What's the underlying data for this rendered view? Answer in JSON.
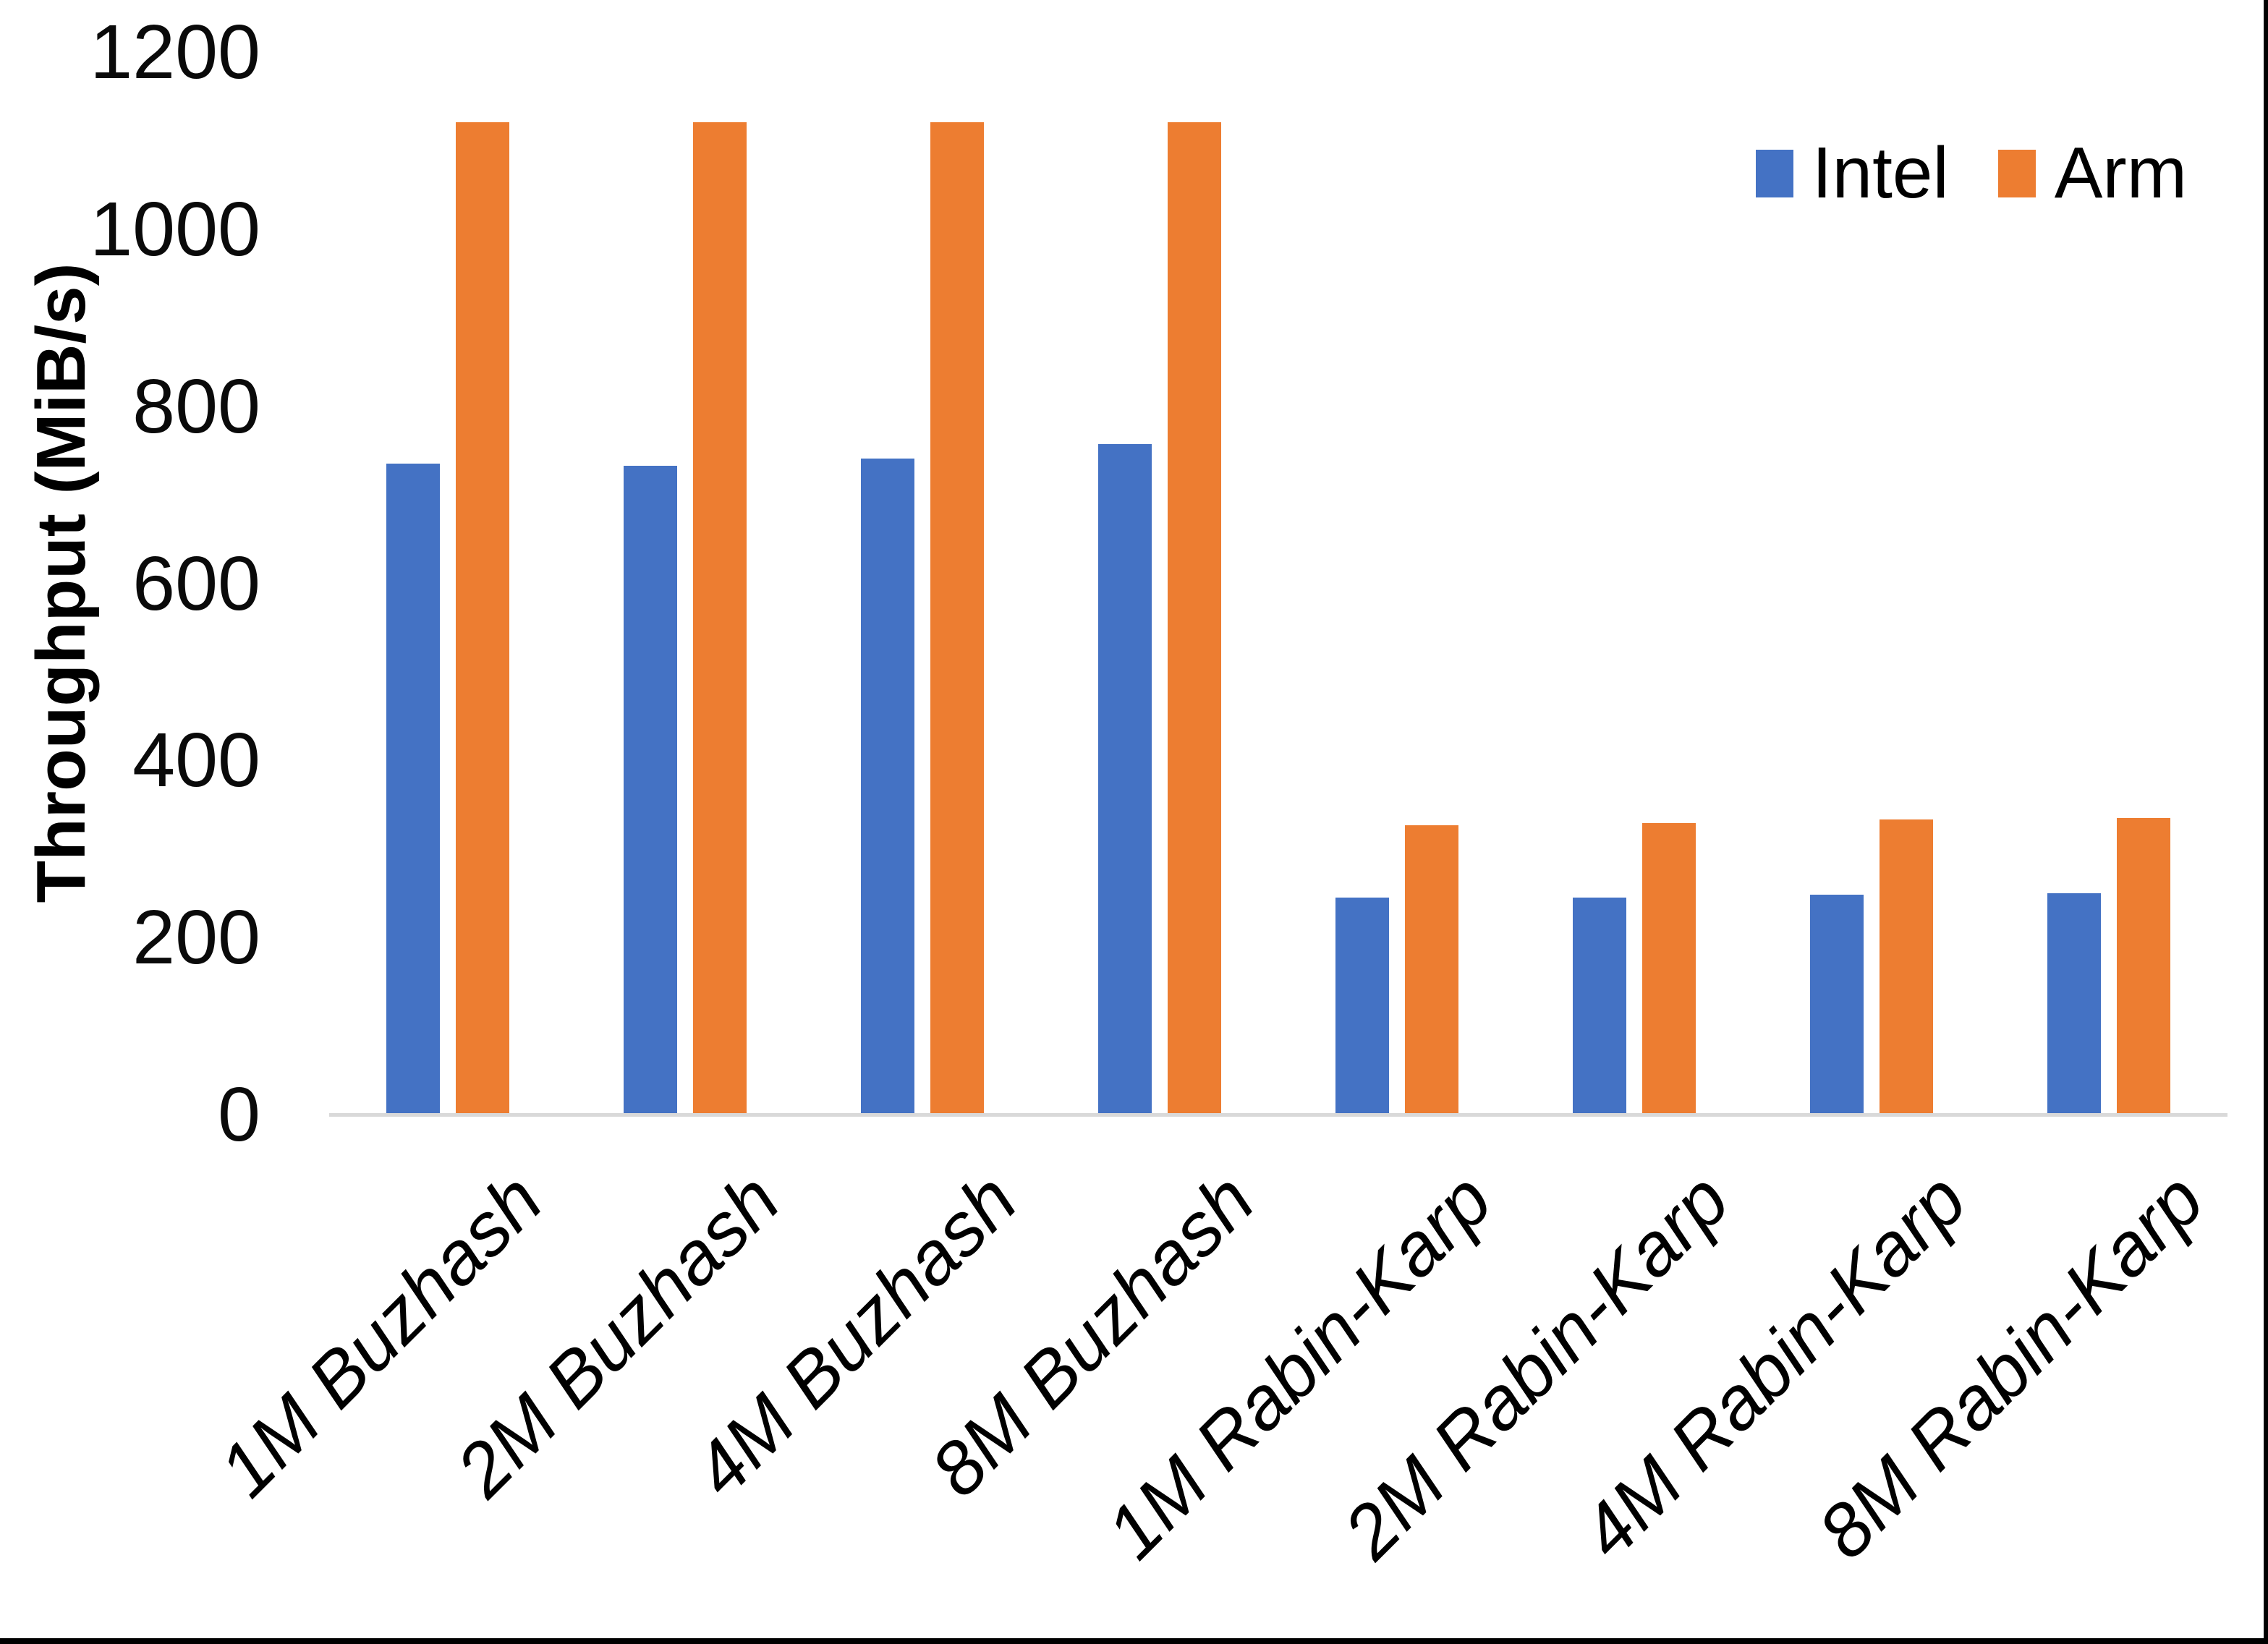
{
  "chart_data": {
    "type": "bar",
    "title": "",
    "xlabel": "",
    "ylabel": "Throughput (MiB/s)",
    "ylim": [
      0,
      1200
    ],
    "ytick_step": 200,
    "ytick_labels": [
      "0",
      "200",
      "400",
      "600",
      "800",
      "1000",
      "1200"
    ],
    "grid": false,
    "legend_position": "top-right",
    "axis_line_color": "#d9d9d9",
    "background_color": "#ffffff",
    "border_color": "#000000",
    "categories": [
      "1M Buzhash",
      "2M Buzhash",
      "4M Buzhash",
      "8M Buzhash",
      "1M Rabin-Karp",
      "2M Rabin-Karp",
      "4M Rabin-Karp",
      "8M Rabin-Karp"
    ],
    "series": [
      {
        "name": "Intel",
        "color": "#4472c4",
        "values": [
          735,
          733,
          741,
          757,
          245,
          245,
          248,
          250
        ]
      },
      {
        "name": "Arm",
        "color": "#ed7d31",
        "values": [
          1121,
          1121,
          1121,
          1121,
          327,
          329,
          333,
          335
        ]
      }
    ]
  }
}
